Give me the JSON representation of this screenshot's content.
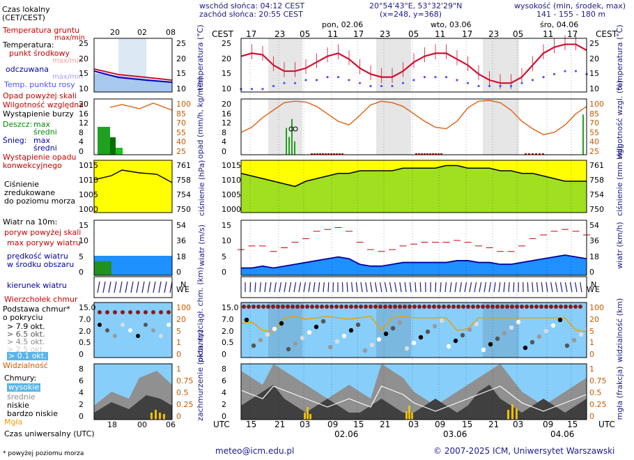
{
  "header": {
    "sunrise": "wschód słońca: 04:12 CEST",
    "sunset": "zachód słońca: 20:55 CEST",
    "coords": "20°54'43\"E, 53°32'29\"N",
    "grid": "(x=248, y=368)",
    "alt_title": "wysokość (min, środek, max)",
    "alt_values": "141 - 155 - 180 m",
    "days": [
      "pon, 02.06",
      "wto, 03.06",
      "śro, 04.06"
    ],
    "cest_label": "CEST",
    "cest_ticks": [
      "17",
      "23",
      "05",
      "11",
      "17",
      "23",
      "05",
      "11",
      "17",
      "23",
      "05",
      "11",
      "17"
    ],
    "utc_label": "UTC",
    "utc_ticks": [
      "15",
      "21",
      "03",
      "09",
      "15",
      "21",
      "03",
      "09",
      "15",
      "21",
      "03",
      "09",
      "15"
    ],
    "utc_days": [
      "02.06",
      "03.06",
      "04.06"
    ]
  },
  "legend": {
    "local_time": "Czas lokalny",
    "local_time_sub": "(CET/CEST)",
    "local_ticks": [
      "20",
      "02",
      "08"
    ],
    "utc_ticks": [
      "18",
      "00",
      "06"
    ],
    "soil_temp": "Temperatura gruntu",
    "soil_temp_sub": "max/min",
    "temperature": "Temperatura:",
    "temp_mid": "punkt środkowy",
    "temp_range": "max/min",
    "feels": "odczuwana",
    "feels_range": "max/min",
    "dew": "Temp. punktu rosy",
    "precip_above": "Opad powyżej skali",
    "humidity": "Wilgotność względna",
    "storm": "Wystąpienie burzy",
    "rain": "Deszcz:",
    "max": "max",
    "avg": "średni",
    "snow": "Śnieg:",
    "precip_occ_1": "Wystąpienie opadu",
    "precip_occ_2": "konwekcyjnego",
    "pressure_1": "Ciśnienie",
    "pressure_2": "zredukowane",
    "pressure_3": "do poziomu morza",
    "wind_title": "Wiatr na 10m:",
    "gust_above": "poryw powyżej skali",
    "gust_max": "max porywy wiatru",
    "wind_mean_1": "prędkość wiatru",
    "wind_mean_2": "w środku obszaru",
    "wind_dir": "kierunek wiatru",
    "cloud_top": "Wierzchołek chmur",
    "cloud_base_1": "Podstawa chmur*",
    "cloud_base_2": "o pokryciu",
    "okt_79": "> 7.9 okt.",
    "okt_65": "> 6.5 okt.",
    "okt_45": "> 4.5 okt.",
    "okt_25": "> 2.5 okt.",
    "okt_01": "> 0.1 okt.",
    "visibility": "Widzialność",
    "clouds": "Chmury:",
    "high": "wysokie",
    "mid": "średnie",
    "low": "niskie",
    "very_low": "bardzo niskie",
    "fog": "Mgła",
    "utc_time": "Czas uniwersalny (UTC)",
    "footnote": "* powyżej poziomu morza"
  },
  "axes": {
    "temp_left": "temperatura (°C)",
    "temp_right": "temperatura (°C)",
    "precip_left": "opad (mm/h, kg/m²h)",
    "precip_right": "wilgotność wzgl. (%)",
    "pres_left": "ciśnienie (hPa)",
    "pres_right": "ciśnienie (mm Hg)",
    "wind_left": "wiatr (m/s)",
    "wind_right": "wiatr (km/h)",
    "cloud_left": "pion. rozciągł. chm. (km)",
    "cloud_right": "widzialność (km)",
    "cover_left": "zachmurzenie (oktanty)",
    "cover_right": "mgła (frakcja)"
  },
  "footer": {
    "email": "meteo@icm.edu.pl",
    "copyright": "© 2007-2025 ICM, Uniwersytet Warszawski"
  },
  "colors": {
    "temp": "#d01030",
    "dew": "#5050ff",
    "humidity": "#e06010",
    "pressure_line": "#000000",
    "wind_gust": "#c00000",
    "wind_fill": "#1e90ff",
    "cloud_bg": "#87cefa",
    "visibility": "#f0a000",
    "fog": "#f0c000"
  },
  "chart_data": [
    {
      "type": "line",
      "title": "temperatura",
      "ylim": [
        8,
        26
      ],
      "ticks_left": [
        "25",
        "20",
        "15",
        "10"
      ],
      "ticks_right": [
        "25",
        "20",
        "15",
        "10"
      ],
      "series": [
        {
          "name": "punkt środkowy",
          "values": [
            20,
            21,
            20.5,
            17,
            15,
            15,
            16,
            18,
            20,
            21,
            19,
            16,
            14,
            13,
            13,
            15,
            18,
            20,
            21,
            21,
            19,
            17,
            14,
            12,
            11,
            11,
            13,
            17,
            21,
            23,
            24,
            24,
            22
          ]
        },
        {
          "name": "Temp. punktu rosy",
          "values": [
            9,
            9,
            9,
            10,
            11,
            11,
            12,
            12,
            13,
            13,
            12,
            11,
            10,
            10,
            10,
            11,
            12,
            13,
            13,
            13,
            12,
            11,
            10,
            10,
            10,
            10,
            11,
            12,
            13,
            14,
            15,
            15,
            14
          ]
        }
      ]
    },
    {
      "type": "line",
      "title": "opad / wilgotność",
      "ylim": [
        0,
        20
      ],
      "ticks_left": [
        "20",
        "16",
        "12",
        "8",
        "4",
        "0"
      ],
      "ticks_right": [
        "100",
        "85",
        "70",
        "55",
        "40",
        "25"
      ],
      "series": [
        {
          "name": "Wilgotność względna",
          "values": [
            55,
            62,
            75,
            85,
            95,
            97,
            96,
            90,
            80,
            70,
            65,
            78,
            92,
            97,
            95,
            90,
            80,
            70,
            62,
            60,
            70,
            88,
            97,
            98,
            95,
            85,
            70,
            60,
            52,
            55,
            65,
            80,
            90
          ]
        }
      ]
    },
    {
      "type": "area",
      "title": "ciśnienie",
      "ylim": [
        1000,
        1020
      ],
      "ticks_left": [
        "1015",
        "1010",
        "1005",
        "1000"
      ],
      "ticks_right": [
        "761",
        "758",
        "754",
        "750"
      ],
      "series": [
        {
          "name": "Ciśnienie",
          "values": [
            1015,
            1014,
            1013,
            1012,
            1011,
            1010,
            1012,
            1013,
            1014,
            1015,
            1015,
            1016,
            1016,
            1016,
            1016,
            1017,
            1017,
            1017,
            1017,
            1018,
            1018,
            1017,
            1017,
            1017,
            1016,
            1016,
            1015,
            1015,
            1014,
            1013,
            1012,
            1012,
            1012
          ]
        }
      ]
    },
    {
      "type": "area",
      "title": "wiatr",
      "ylim": [
        0,
        15
      ],
      "ticks_left": [
        "15",
        "10",
        "5",
        "0"
      ],
      "ticks_right": [
        "54",
        "36",
        "18",
        "0"
      ],
      "series": [
        {
          "name": "prędkość wiatru",
          "values": [
            2,
            2,
            2.5,
            2,
            2.5,
            3,
            3.5,
            4,
            4.5,
            5,
            4.5,
            3,
            2.5,
            2.5,
            3,
            3.5,
            3.5,
            3.5,
            3.5,
            3.5,
            4,
            4,
            3.5,
            3.5,
            3,
            3,
            3.5,
            4,
            4.5,
            5,
            5.5,
            5,
            4.5
          ]
        },
        {
          "name": "max porywy wiatru",
          "values": [
            7,
            8,
            8,
            6.5,
            7.5,
            9,
            10,
            12,
            12.5,
            13,
            12,
            9,
            7,
            6.5,
            7,
            8,
            8.5,
            9,
            9,
            9,
            9.5,
            9,
            8,
            7.5,
            6.5,
            6.5,
            8,
            10,
            11,
            12,
            12.5,
            12,
            11
          ]
        }
      ]
    },
    {
      "type": "scatter",
      "title": "chmury / widzialność",
      "ylim": [
        0,
        15
      ],
      "ticks_left": [
        "15.0",
        "7.0",
        "2.0",
        "0.5",
        "0"
      ],
      "ticks_right": [
        "100",
        "20",
        "5",
        "1",
        "0"
      ],
      "series": [
        {
          "name": "Widzialność",
          "values": [
            20,
            18,
            6,
            5,
            20,
            20,
            20,
            20,
            20,
            20,
            20,
            20,
            20,
            6,
            20,
            20,
            20,
            20,
            20,
            20,
            6,
            8,
            20,
            20,
            20,
            20,
            20,
            20,
            20,
            20,
            20,
            6,
            5
          ]
        }
      ]
    },
    {
      "type": "area",
      "title": "zachmurzenie",
      "ylim": [
        0,
        8
      ],
      "ticks_left": [
        "8",
        "6",
        "4",
        "2",
        "0"
      ],
      "ticks_right": [
        "1",
        "0.75",
        "0.5",
        "0.25",
        "0"
      ],
      "series": [
        {
          "name": "niskie",
          "values": [
            2,
            3,
            4,
            5,
            3,
            2,
            1,
            2,
            3,
            2,
            1,
            1,
            2,
            3,
            2,
            1,
            1,
            2,
            3,
            2,
            1,
            2,
            4,
            5,
            3,
            2,
            1,
            2,
            3,
            2,
            1,
            2,
            3
          ]
        },
        {
          "name": "średnie",
          "values": [
            7,
            6,
            5,
            8,
            7,
            6,
            5,
            4,
            3,
            4,
            5,
            4,
            3,
            8,
            7,
            6,
            4,
            3,
            2,
            3,
            4,
            5,
            6,
            7,
            8,
            6,
            4,
            3,
            2,
            3,
            4,
            5,
            6
          ]
        }
      ]
    }
  ]
}
